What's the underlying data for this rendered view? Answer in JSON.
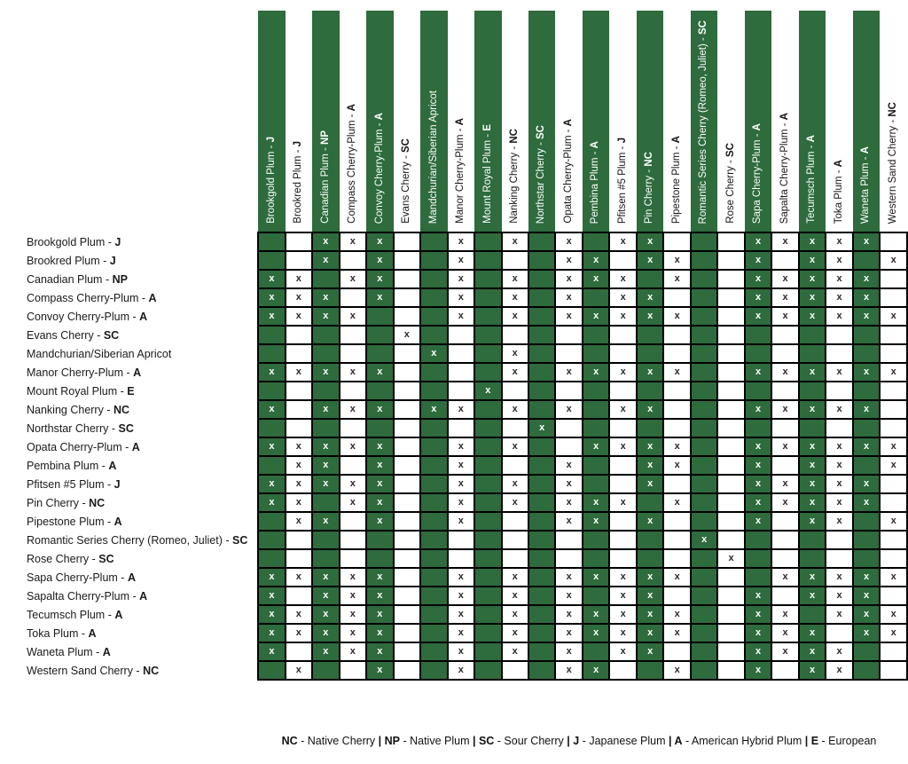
{
  "colors": {
    "green": "#2e6b3d",
    "grid": "#000000",
    "text": "#1a1a1a"
  },
  "chart_data": {
    "type": "table",
    "mark": "x",
    "varieties": [
      {
        "name": "Brookgold Plum",
        "code": "J"
      },
      {
        "name": "Brookred Plum",
        "code": "J"
      },
      {
        "name": "Canadian Plum",
        "code": "NP"
      },
      {
        "name": "Compass Cherry-Plum",
        "code": "A"
      },
      {
        "name": "Convoy Cherry-Plum",
        "code": "A"
      },
      {
        "name": "Evans Cherry",
        "code": "SC"
      },
      {
        "name": "Mandchurian/Siberian Apricot",
        "code": ""
      },
      {
        "name": "Manor Cherry-Plum",
        "code": "A"
      },
      {
        "name": "Mount Royal Plum",
        "code": "E"
      },
      {
        "name": "Nanking Cherry",
        "code": "NC"
      },
      {
        "name": "Northstar Cherry",
        "code": "SC"
      },
      {
        "name": "Opata Cherry-Plum",
        "code": "A"
      },
      {
        "name": "Pembina Plum",
        "code": "A"
      },
      {
        "name": "Pfitsen #5 Plum",
        "code": "J"
      },
      {
        "name": "Pin Cherry",
        "code": "NC"
      },
      {
        "name": "Pipestone Plum",
        "code": "A"
      },
      {
        "name": "Romantic Series Cherry (Romeo, Juliet)",
        "code": "SC"
      },
      {
        "name": "Rose Cherry",
        "code": "SC"
      },
      {
        "name": "Sapa Cherry-Plum",
        "code": "A"
      },
      {
        "name": "Sapalta Cherry-Plum",
        "code": "A"
      },
      {
        "name": "Tecumsch Plum",
        "code": "A"
      },
      {
        "name": "Toka Plum",
        "code": "A"
      },
      {
        "name": "Waneta Plum",
        "code": "A"
      },
      {
        "name": "Western Sand Cherry",
        "code": "NC"
      }
    ],
    "matrix": [
      [
        0,
        0,
        1,
        1,
        1,
        0,
        0,
        1,
        0,
        1,
        0,
        1,
        0,
        1,
        1,
        0,
        0,
        0,
        1,
        1,
        1,
        1,
        1,
        0
      ],
      [
        0,
        0,
        1,
        0,
        1,
        0,
        0,
        1,
        0,
        0,
        0,
        1,
        1,
        0,
        1,
        1,
        0,
        0,
        1,
        0,
        1,
        1,
        0,
        1
      ],
      [
        1,
        1,
        0,
        1,
        1,
        0,
        0,
        1,
        0,
        1,
        0,
        1,
        1,
        1,
        0,
        1,
        0,
        0,
        1,
        1,
        1,
        1,
        1,
        0
      ],
      [
        1,
        1,
        1,
        0,
        1,
        0,
        0,
        1,
        0,
        1,
        0,
        1,
        0,
        1,
        1,
        0,
        0,
        0,
        1,
        1,
        1,
        1,
        1,
        0
      ],
      [
        1,
        1,
        1,
        1,
        0,
        0,
        0,
        1,
        0,
        1,
        0,
        1,
        1,
        1,
        1,
        1,
        0,
        0,
        1,
        1,
        1,
        1,
        1,
        1
      ],
      [
        0,
        0,
        0,
        0,
        0,
        1,
        0,
        0,
        0,
        0,
        0,
        0,
        0,
        0,
        0,
        0,
        0,
        0,
        0,
        0,
        0,
        0,
        0,
        0
      ],
      [
        0,
        0,
        0,
        0,
        0,
        0,
        1,
        0,
        0,
        1,
        0,
        0,
        0,
        0,
        0,
        0,
        0,
        0,
        0,
        0,
        0,
        0,
        0,
        0
      ],
      [
        1,
        1,
        1,
        1,
        1,
        0,
        0,
        0,
        0,
        1,
        0,
        1,
        1,
        1,
        1,
        1,
        0,
        0,
        1,
        1,
        1,
        1,
        1,
        1
      ],
      [
        0,
        0,
        0,
        0,
        0,
        0,
        0,
        0,
        1,
        0,
        0,
        0,
        0,
        0,
        0,
        0,
        0,
        0,
        0,
        0,
        0,
        0,
        0,
        0
      ],
      [
        1,
        0,
        1,
        1,
        1,
        0,
        1,
        1,
        0,
        1,
        0,
        1,
        0,
        1,
        1,
        0,
        0,
        0,
        1,
        1,
        1,
        1,
        1,
        0
      ],
      [
        0,
        0,
        0,
        0,
        0,
        0,
        0,
        0,
        0,
        0,
        1,
        0,
        0,
        0,
        0,
        0,
        0,
        0,
        0,
        0,
        0,
        0,
        0,
        0
      ],
      [
        1,
        1,
        1,
        1,
        1,
        0,
        0,
        1,
        0,
        1,
        0,
        0,
        1,
        1,
        1,
        1,
        0,
        0,
        1,
        1,
        1,
        1,
        1,
        1
      ],
      [
        0,
        1,
        1,
        0,
        1,
        0,
        0,
        1,
        0,
        0,
        0,
        1,
        0,
        0,
        1,
        1,
        0,
        0,
        1,
        0,
        1,
        1,
        0,
        1
      ],
      [
        1,
        1,
        1,
        1,
        1,
        0,
        0,
        1,
        0,
        1,
        0,
        1,
        0,
        0,
        1,
        0,
        0,
        0,
        1,
        1,
        1,
        1,
        1,
        0
      ],
      [
        1,
        1,
        0,
        1,
        1,
        0,
        0,
        1,
        0,
        1,
        0,
        1,
        1,
        1,
        0,
        1,
        0,
        0,
        1,
        1,
        1,
        1,
        1,
        0
      ],
      [
        0,
        1,
        1,
        0,
        1,
        0,
        0,
        1,
        0,
        0,
        0,
        1,
        1,
        0,
        1,
        0,
        0,
        0,
        1,
        0,
        1,
        1,
        0,
        1
      ],
      [
        0,
        0,
        0,
        0,
        0,
        0,
        0,
        0,
        0,
        0,
        0,
        0,
        0,
        0,
        0,
        0,
        1,
        0,
        0,
        0,
        0,
        0,
        0,
        0
      ],
      [
        0,
        0,
        0,
        0,
        0,
        0,
        0,
        0,
        0,
        0,
        0,
        0,
        0,
        0,
        0,
        0,
        0,
        1,
        0,
        0,
        0,
        0,
        0,
        0
      ],
      [
        1,
        1,
        1,
        1,
        1,
        0,
        0,
        1,
        0,
        1,
        0,
        1,
        1,
        1,
        1,
        1,
        0,
        0,
        0,
        1,
        1,
        1,
        1,
        1
      ],
      [
        1,
        0,
        1,
        1,
        1,
        0,
        0,
        1,
        0,
        1,
        0,
        1,
        0,
        1,
        1,
        0,
        0,
        0,
        1,
        0,
        1,
        1,
        1,
        0
      ],
      [
        1,
        1,
        1,
        1,
        1,
        0,
        0,
        1,
        0,
        1,
        0,
        1,
        1,
        1,
        1,
        1,
        0,
        0,
        1,
        1,
        0,
        1,
        1,
        1
      ],
      [
        1,
        1,
        1,
        1,
        1,
        0,
        0,
        1,
        0,
        1,
        0,
        1,
        1,
        1,
        1,
        1,
        0,
        0,
        1,
        1,
        1,
        0,
        1,
        1
      ],
      [
        1,
        0,
        1,
        1,
        1,
        0,
        0,
        1,
        0,
        1,
        0,
        1,
        0,
        1,
        1,
        0,
        0,
        0,
        1,
        1,
        1,
        1,
        0,
        0
      ],
      [
        0,
        1,
        0,
        0,
        1,
        0,
        0,
        1,
        0,
        0,
        0,
        1,
        1,
        0,
        0,
        1,
        0,
        0,
        1,
        0,
        1,
        1,
        0,
        0
      ]
    ],
    "legend": [
      {
        "code": "NC",
        "label": "Native Cherry"
      },
      {
        "code": "NP",
        "label": "Native Plum"
      },
      {
        "code": "SC",
        "label": "Sour Cherry"
      },
      {
        "code": "J",
        "label": "Japanese Plum"
      },
      {
        "code": "A",
        "label": "American Hybrid Plum"
      },
      {
        "code": "E",
        "label": "European"
      }
    ]
  }
}
